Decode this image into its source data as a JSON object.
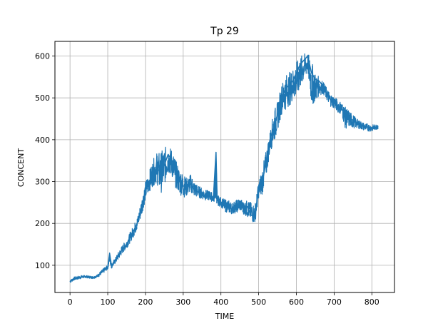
{
  "chart_data": {
    "type": "line",
    "title": "Tp 29",
    "xlabel": "TIME",
    "ylabel": "CONCENT",
    "xlim": [
      -40,
      860
    ],
    "ylim": [
      35,
      635
    ],
    "xticks": [
      0,
      100,
      200,
      300,
      400,
      500,
      600,
      700,
      800
    ],
    "yticks": [
      100,
      200,
      300,
      400,
      500,
      600
    ],
    "grid": true,
    "series": [
      {
        "color": "#1f77b4",
        "x": [
          0,
          10,
          20,
          30,
          40,
          50,
          60,
          70,
          80,
          90,
          100,
          105,
          110,
          120,
          130,
          140,
          150,
          160,
          170,
          180,
          190,
          200,
          210,
          220,
          230,
          240,
          250,
          260,
          270,
          280,
          290,
          300,
          310,
          320,
          330,
          340,
          350,
          360,
          370,
          380,
          387,
          390,
          400,
          410,
          420,
          430,
          440,
          450,
          460,
          470,
          480,
          490,
          500,
          510,
          520,
          530,
          540,
          550,
          560,
          570,
          580,
          590,
          600,
          610,
          620,
          630,
          640,
          650,
          660,
          670,
          680,
          690,
          700,
          710,
          720,
          730,
          740,
          750,
          760,
          770,
          780,
          790,
          800,
          810,
          817
        ],
        "y": [
          62,
          68,
          70,
          72,
          73,
          72,
          71,
          73,
          80,
          88,
          95,
          128,
          98,
          110,
          125,
          140,
          150,
          168,
          185,
          205,
          240,
          280,
          300,
          320,
          330,
          325,
          340,
          365,
          350,
          320,
          300,
          290,
          285,
          295,
          280,
          275,
          270,
          265,
          265,
          260,
          370,
          255,
          250,
          240,
          238,
          235,
          240,
          245,
          238,
          240,
          220,
          215,
          280,
          300,
          350,
          400,
          430,
          460,
          500,
          520,
          530,
          540,
          560,
          580,
          590,
          600,
          560,
          545,
          540,
          530,
          510,
          495,
          490,
          480,
          475,
          460,
          455,
          445,
          440,
          435,
          432,
          430,
          428,
          430,
          432
        ],
        "hi": [
          64,
          72,
          74,
          76,
          76,
          75,
          74,
          76,
          85,
          94,
          100,
          132,
          104,
          118,
          135,
          150,
          162,
          180,
          198,
          220,
          260,
          300,
          325,
          352,
          370,
          370,
          382,
          385,
          378,
          352,
          332,
          318,
          308,
          318,
          300,
          290,
          285,
          280,
          278,
          272,
          370,
          268,
          262,
          258,
          256,
          250,
          255,
          262,
          252,
          255,
          250,
          245,
          300,
          335,
          375,
          420,
          470,
          490,
          530,
          555,
          560,
          570,
          585,
          600,
          605,
          608,
          590,
          560,
          550,
          540,
          525,
          510,
          505,
          495,
          490,
          478,
          470,
          460,
          450,
          445,
          440,
          438,
          436,
          436,
          438
        ],
        "lo": [
          58,
          64,
          66,
          68,
          70,
          69,
          68,
          70,
          75,
          82,
          90,
          110,
          92,
          104,
          115,
          130,
          140,
          155,
          170,
          190,
          220,
          255,
          275,
          290,
          295,
          270,
          290,
          320,
          310,
          285,
          270,
          262,
          265,
          275,
          262,
          262,
          258,
          255,
          255,
          250,
          255,
          243,
          240,
          228,
          225,
          222,
          225,
          230,
          222,
          215,
          205,
          198,
          260,
          270,
          310,
          370,
          390,
          420,
          460,
          470,
          480,
          490,
          500,
          520,
          540,
          560,
          480,
          490,
          505,
          510,
          495,
          480,
          475,
          465,
          460,
          425,
          430,
          428,
          428,
          425,
          422,
          420,
          420,
          424,
          426
        ]
      }
    ]
  }
}
